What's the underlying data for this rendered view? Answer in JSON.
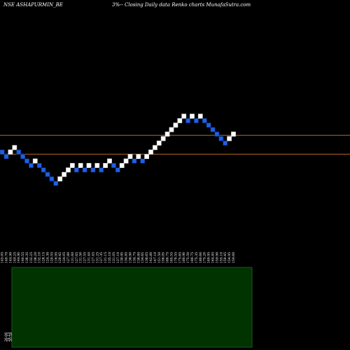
{
  "header": {
    "symbol": "NSE ASHAPURMIN_BE",
    "title": "3%-- Closing Daily data Renko charts MunafaSutra.com"
  },
  "colors": {
    "background": "#000000",
    "brick_up": "#ffffff",
    "brick_down": "#1f5fe6",
    "brick_down_border": "#0a2a6a",
    "support_line": "#c0672a",
    "volume_fill": "#003300",
    "volume_border": "#1a5a1a",
    "text": "#ffffff"
  },
  "chart_data": [
    {
      "type": "renko",
      "brick_size_percent": 3,
      "bricks": [
        {
          "dir": "down",
          "value": 145.05
        },
        {
          "dir": "down",
          "value": 140.7
        },
        {
          "dir": "up",
          "value": 144.9
        },
        {
          "dir": "up",
          "value": 149.25
        },
        {
          "dir": "down",
          "value": 144.9
        },
        {
          "dir": "down",
          "value": 140.55
        },
        {
          "dir": "down",
          "value": 136.35
        },
        {
          "dir": "down",
          "value": 132.25
        },
        {
          "dir": "up",
          "value": 136.2
        },
        {
          "dir": "down",
          "value": 132.1
        },
        {
          "dir": "down",
          "value": 128.15
        },
        {
          "dir": "down",
          "value": 124.3
        },
        {
          "dir": "down",
          "value": 120.55
        },
        {
          "dir": "down",
          "value": 116.95
        },
        {
          "dir": "up",
          "value": 120.45
        },
        {
          "dir": "up",
          "value": 124.05
        },
        {
          "dir": "up",
          "value": 127.8
        },
        {
          "dir": "up",
          "value": 131.6
        },
        {
          "dir": "down",
          "value": 127.65
        },
        {
          "dir": "up",
          "value": 131.5
        },
        {
          "dir": "down",
          "value": 127.55
        },
        {
          "dir": "up",
          "value": 131.4
        },
        {
          "dir": "down",
          "value": 127.45
        },
        {
          "dir": "up",
          "value": 131.25
        },
        {
          "dir": "down",
          "value": 127.35
        },
        {
          "dir": "up",
          "value": 131.15
        },
        {
          "dir": "up",
          "value": 135.1
        },
        {
          "dir": "down",
          "value": 131.05
        },
        {
          "dir": "down",
          "value": 127.1
        },
        {
          "dir": "up",
          "value": 130.95
        },
        {
          "dir": "up",
          "value": 134.85
        },
        {
          "dir": "up",
          "value": 138.9
        },
        {
          "dir": "down",
          "value": 134.75
        },
        {
          "dir": "up",
          "value": 138.8
        },
        {
          "dir": "down",
          "value": 134.65
        },
        {
          "dir": "up",
          "value": 138.65
        },
        {
          "dir": "up",
          "value": 142.8
        },
        {
          "dir": "up",
          "value": 147.1
        },
        {
          "dir": "up",
          "value": 151.5
        },
        {
          "dir": "up",
          "value": 156.05
        },
        {
          "dir": "up",
          "value": 160.75
        },
        {
          "dir": "up",
          "value": 165.55
        },
        {
          "dir": "up",
          "value": 170.55
        },
        {
          "dir": "up",
          "value": 175.65
        },
        {
          "dir": "up",
          "value": 180.9
        },
        {
          "dir": "down",
          "value": 175.5
        },
        {
          "dir": "up",
          "value": 180.75
        },
        {
          "dir": "down",
          "value": 175.35
        },
        {
          "dir": "up",
          "value": 180.6
        },
        {
          "dir": "down",
          "value": 175.2
        },
        {
          "dir": "down",
          "value": 169.95
        },
        {
          "dir": "down",
          "value": 164.85
        },
        {
          "dir": "down",
          "value": 159.9
        },
        {
          "dir": "down",
          "value": 155.1
        },
        {
          "dir": "down",
          "value": 150.45
        },
        {
          "dir": "up",
          "value": 154.95
        },
        {
          "dir": "up",
          "value": 159.6
        }
      ],
      "support_lines": [
        143,
        162
      ],
      "volume_axis_labels": [
        "26.06",
        "24.15",
        "20.58"
      ],
      "xlabel": "",
      "ylabel": ""
    }
  ]
}
